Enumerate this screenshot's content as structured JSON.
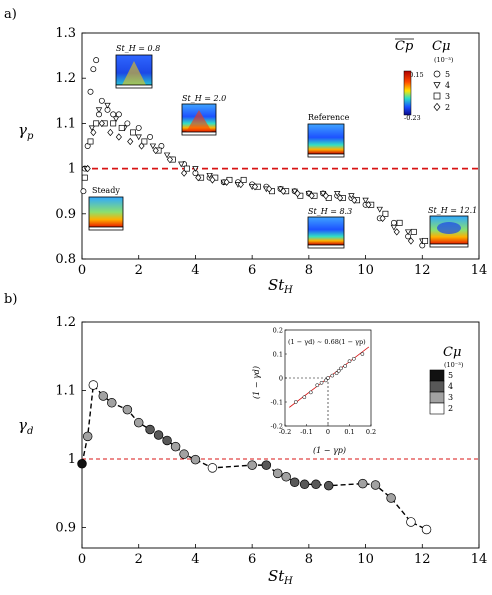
{
  "colors": {
    "ref_line": "#d81414",
    "axis": "#000000",
    "marker_edge": "#000000"
  },
  "panel_a": {
    "label": "a)",
    "xlabel": "St",
    "xlabel_sub": "H",
    "ylabel": "γ",
    "ylabel_sub": "p",
    "xticks": [
      "0",
      "2",
      "4",
      "6",
      "8",
      "10",
      "12",
      "14"
    ],
    "yticks": [
      "0.8",
      "0.9",
      "1",
      "1.1",
      "1.2",
      "1.3"
    ],
    "legend": {
      "cp_label": "Cp",
      "cmu_label": "Cμ",
      "cmu_units": "(10⁻³)",
      "cbar_max": "-0.15",
      "cbar_min": "-0.23",
      "entries": [
        {
          "symbol": "circle",
          "label": "5"
        },
        {
          "symbol": "triangle",
          "label": "4"
        },
        {
          "symbol": "square",
          "label": "3"
        },
        {
          "symbol": "diamond",
          "label": "2"
        }
      ]
    },
    "insets": [
      {
        "label": "St_H = 0.8"
      },
      {
        "label": "St_H = 2.0"
      },
      {
        "label": "Reference"
      },
      {
        "label": "Steady"
      },
      {
        "label": "St_H = 8.3"
      },
      {
        "label": "St_H = 12.1"
      }
    ]
  },
  "panel_b": {
    "label": "b)",
    "xlabel": "St",
    "xlabel_sub": "H",
    "ylabel": "γ",
    "ylabel_sub": "d",
    "xticks": [
      "0",
      "2",
      "4",
      "6",
      "8",
      "10",
      "12",
      "14"
    ],
    "yticks": [
      "0.9",
      "1",
      "1.1",
      "1.2"
    ],
    "legend": {
      "cmu_label": "Cμ",
      "cmu_units": "(10⁻³)",
      "entries": [
        "5",
        "4",
        "3",
        "2"
      ]
    },
    "inset": {
      "equation": "(1 − γd) ∼ 0.68(1 − γp)",
      "xlabel": "(1 − γp)",
      "ylabel": "(1 − γd)",
      "xticks": [
        "-0.2",
        "-0.1",
        "0",
        "0.1",
        "0.2"
      ],
      "yticks": [
        "-0.2",
        "-0.1",
        "0",
        "0.1",
        "0.2"
      ]
    }
  },
  "chart_data": [
    {
      "type": "scatter",
      "panel": "a",
      "xlabel": "St_H",
      "ylabel": "γ_p",
      "xlim": [
        0,
        14
      ],
      "ylim": [
        0.8,
        1.3
      ],
      "reference_line": 1.0,
      "series": [
        {
          "name": "5",
          "marker": "circle",
          "x": [
            0.05,
            0.1,
            0.2,
            0.3,
            0.4,
            0.5,
            0.6,
            0.7,
            0.9,
            1.1,
            1.3,
            1.6,
            2.0,
            2.4,
            2.8,
            3.2,
            3.6,
            4.0,
            4.5,
            5.0,
            5.5,
            6.0,
            6.5,
            7.0,
            7.5,
            8.0,
            8.5,
            9.0,
            9.5,
            10.0,
            10.5,
            11.0,
            11.5,
            12.0
          ],
          "y": [
            0.95,
            1.0,
            1.05,
            1.17,
            1.22,
            1.24,
            1.12,
            1.15,
            1.13,
            1.12,
            1.12,
            1.1,
            1.09,
            1.07,
            1.05,
            1.02,
            1.01,
            0.99,
            0.98,
            0.97,
            0.97,
            0.965,
            0.96,
            0.955,
            0.95,
            0.945,
            0.945,
            0.94,
            0.935,
            0.92,
            0.89,
            0.88,
            0.85,
            0.83
          ]
        },
        {
          "name": "4",
          "marker": "triangle",
          "x": [
            0.15,
            0.35,
            0.6,
            0.9,
            1.2,
            1.5,
            2.0,
            2.5,
            3.0,
            3.5,
            4.0,
            4.5,
            5.0,
            5.5,
            6.0,
            6.5,
            7.0,
            7.5,
            8.0,
            8.5,
            9.0,
            9.5,
            10.0,
            10.5,
            11.0,
            11.5,
            12.0
          ],
          "y": [
            1.0,
            1.09,
            1.13,
            1.14,
            1.11,
            1.09,
            1.07,
            1.05,
            1.03,
            1.01,
            1.0,
            0.985,
            0.97,
            0.965,
            0.96,
            0.955,
            0.955,
            0.95,
            0.945,
            0.945,
            0.945,
            0.94,
            0.93,
            0.91,
            0.87,
            0.86,
            0.84
          ]
        },
        {
          "name": "3",
          "marker": "square",
          "x": [
            0.1,
            0.3,
            0.5,
            0.8,
            1.1,
            1.4,
            1.8,
            2.2,
            2.7,
            3.2,
            3.7,
            4.2,
            4.7,
            5.2,
            5.7,
            6.2,
            6.7,
            7.2,
            7.7,
            8.2,
            8.7,
            9.2,
            9.7,
            10.2,
            10.7,
            11.2,
            11.7,
            12.1
          ],
          "y": [
            0.98,
            1.06,
            1.1,
            1.1,
            1.1,
            1.09,
            1.08,
            1.06,
            1.04,
            1.02,
            1.0,
            0.98,
            0.98,
            0.975,
            0.975,
            0.96,
            0.95,
            0.95,
            0.94,
            0.94,
            0.935,
            0.935,
            0.93,
            0.92,
            0.9,
            0.88,
            0.86,
            0.84
          ]
        },
        {
          "name": "2",
          "marker": "diamond",
          "x": [
            0.2,
            0.4,
            0.7,
            1.0,
            1.3,
            1.7,
            2.1,
            2.6,
            3.1,
            3.6,
            4.1,
            4.6,
            5.1,
            5.6,
            6.1,
            6.6,
            7.1,
            7.6,
            8.1,
            8.6,
            9.1,
            9.6,
            10.1,
            10.6,
            11.1,
            11.6
          ],
          "y": [
            1.0,
            1.08,
            1.1,
            1.08,
            1.07,
            1.06,
            1.05,
            1.04,
            1.02,
            0.99,
            0.98,
            0.975,
            0.97,
            0.965,
            0.96,
            0.955,
            0.95,
            0.945,
            0.94,
            0.94,
            0.935,
            0.93,
            0.92,
            0.89,
            0.86,
            0.84
          ]
        }
      ]
    },
    {
      "type": "line",
      "panel": "b",
      "xlabel": "St_H",
      "ylabel": "γ_d",
      "xlim": [
        0,
        14
      ],
      "ylim": [
        0.87,
        1.2
      ],
      "reference_line": 1.0,
      "points": [
        {
          "x": 0.0,
          "y": 0.993,
          "cmu": 5
        },
        {
          "x": 0.2,
          "y": 1.033,
          "cmu": 3
        },
        {
          "x": 0.4,
          "y": 1.108,
          "cmu": 2
        },
        {
          "x": 0.75,
          "y": 1.092,
          "cmu": 3
        },
        {
          "x": 1.05,
          "y": 1.082,
          "cmu": 3
        },
        {
          "x": 1.6,
          "y": 1.072,
          "cmu": 3
        },
        {
          "x": 2.0,
          "y": 1.053,
          "cmu": 3
        },
        {
          "x": 2.4,
          "y": 1.043,
          "cmu": 4
        },
        {
          "x": 2.7,
          "y": 1.035,
          "cmu": 4
        },
        {
          "x": 3.0,
          "y": 1.027,
          "cmu": 4
        },
        {
          "x": 3.3,
          "y": 1.018,
          "cmu": 3
        },
        {
          "x": 3.6,
          "y": 1.007,
          "cmu": 3
        },
        {
          "x": 4.0,
          "y": 0.999,
          "cmu": 3
        },
        {
          "x": 4.6,
          "y": 0.987,
          "cmu": 2
        },
        {
          "x": 6.0,
          "y": 0.991,
          "cmu": 3
        },
        {
          "x": 6.5,
          "y": 0.991,
          "cmu": 4
        },
        {
          "x": 6.9,
          "y": 0.979,
          "cmu": 3
        },
        {
          "x": 7.2,
          "y": 0.974,
          "cmu": 3
        },
        {
          "x": 7.5,
          "y": 0.966,
          "cmu": 4
        },
        {
          "x": 7.85,
          "y": 0.963,
          "cmu": 4
        },
        {
          "x": 8.25,
          "y": 0.963,
          "cmu": 4
        },
        {
          "x": 8.7,
          "y": 0.961,
          "cmu": 4
        },
        {
          "x": 9.9,
          "y": 0.964,
          "cmu": 3
        },
        {
          "x": 10.35,
          "y": 0.962,
          "cmu": 3
        },
        {
          "x": 10.9,
          "y": 0.943,
          "cmu": 3
        },
        {
          "x": 11.6,
          "y": 0.908,
          "cmu": 2
        },
        {
          "x": 12.15,
          "y": 0.897,
          "cmu": 2
        }
      ],
      "cmu_fill": {
        "5": "#111111",
        "4": "#585858",
        "3": "#a2a2a2",
        "2": "#ffffff"
      }
    },
    {
      "type": "scatter",
      "panel": "b-inset",
      "xlabel": "(1 − γp)",
      "ylabel": "(1 − γd)",
      "xlim": [
        -0.2,
        0.2
      ],
      "ylim": [
        -0.2,
        0.2
      ],
      "fit_slope": 0.68,
      "x": [
        -0.15,
        -0.11,
        -0.08,
        -0.05,
        -0.03,
        -0.01,
        0.0,
        0.02,
        0.04,
        0.05,
        0.06,
        0.08,
        0.1,
        0.12,
        0.16
      ],
      "y": [
        -0.1,
        -0.08,
        -0.06,
        -0.03,
        -0.02,
        -0.01,
        0.0,
        0.01,
        0.02,
        0.03,
        0.04,
        0.05,
        0.07,
        0.08,
        0.1
      ]
    }
  ]
}
